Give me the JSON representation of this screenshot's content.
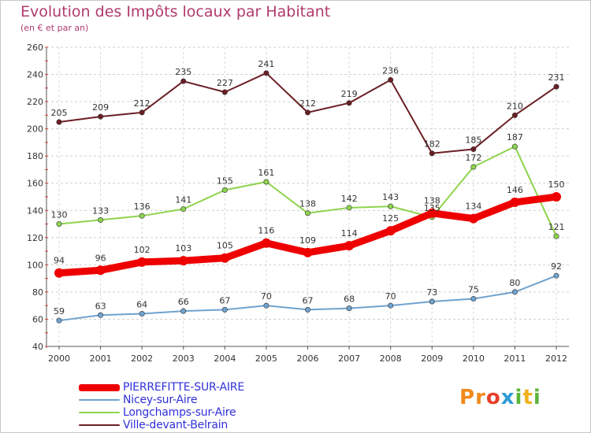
{
  "title": "Evolution des Impôts locaux par Habitant",
  "subtitle": "(en € et par an)",
  "logo": {
    "text": "Proxiti",
    "letters": [
      {
        "ch": "P",
        "color": "#f08a1c"
      },
      {
        "ch": "r",
        "color": "#f08a1c"
      },
      {
        "ch": "o",
        "color": "#e6402a"
      },
      {
        "ch": "x",
        "color": "#2f9bd6"
      },
      {
        "ch": "i",
        "color": "#5db53b"
      },
      {
        "ch": "t",
        "color": "#f2b21d"
      },
      {
        "ch": "i",
        "color": "#5db53b"
      }
    ]
  },
  "chart_data": {
    "type": "line",
    "title": "Evolution des Impôts locaux par Habitant",
    "subtitle": "(en € et par an)",
    "x": [
      "2000",
      "2001",
      "2002",
      "2003",
      "2004",
      "2005",
      "2006",
      "2007",
      "2008",
      "2009",
      "2010",
      "2011",
      "2012"
    ],
    "ylim": [
      40,
      260
    ],
    "yticks": [
      40,
      60,
      80,
      100,
      120,
      140,
      160,
      180,
      200,
      220,
      240,
      260
    ],
    "grid": true,
    "legend_position": "bottom-left",
    "series": [
      {
        "name": "PIERREFITTE-SUR-AIRE",
        "color": "#ee0000",
        "width": 9,
        "values": [
          94,
          96,
          102,
          103,
          105,
          116,
          109,
          114,
          125,
          138,
          134,
          146,
          150
        ]
      },
      {
        "name": "Nicey-sur-Aire",
        "color": "#6fa3cf",
        "width": 2,
        "values": [
          59,
          63,
          64,
          66,
          67,
          70,
          67,
          68,
          70,
          73,
          75,
          80,
          92
        ]
      },
      {
        "name": "Longchamps-sur-Aire",
        "color": "#8ed44e",
        "width": 2,
        "values": [
          130,
          133,
          136,
          141,
          155,
          161,
          138,
          142,
          143,
          135,
          172,
          187,
          121
        ]
      },
      {
        "name": "Ville-devant-Belrain",
        "color": "#6b1f25",
        "width": 2,
        "values": [
          205,
          209,
          212,
          235,
          227,
          241,
          212,
          219,
          236,
          182,
          185,
          210,
          231
        ]
      }
    ]
  }
}
